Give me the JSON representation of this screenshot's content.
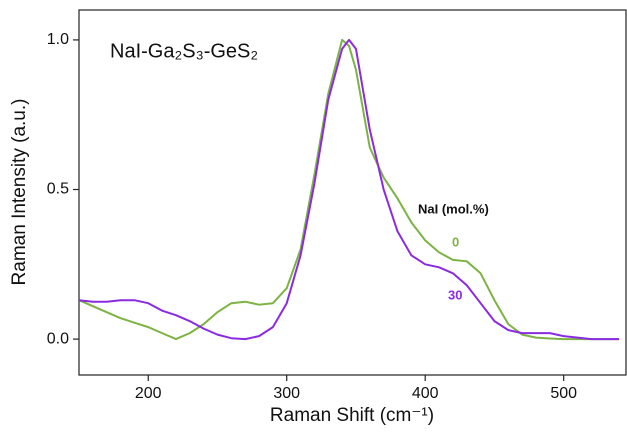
{
  "chart_data": {
    "type": "line",
    "annotation": "NaI-Ga₂S₃-GeS₂",
    "x_label": "Raman Shift (cm⁻¹)",
    "y_label": "Raman Intensity (a.u.)",
    "legend_title": "NaI (mol.%)",
    "x": [
      150,
      160,
      170,
      180,
      190,
      200,
      210,
      220,
      230,
      240,
      250,
      260,
      270,
      280,
      290,
      300,
      310,
      320,
      330,
      340,
      345,
      350,
      360,
      370,
      380,
      390,
      400,
      410,
      420,
      430,
      440,
      450,
      460,
      470,
      480,
      490,
      500,
      510,
      520,
      530,
      540
    ],
    "series": [
      {
        "name": "0",
        "color": "#7cb342",
        "values": [
          0.13,
          0.11,
          0.09,
          0.07,
          0.055,
          0.04,
          0.02,
          0.0,
          0.02,
          0.05,
          0.09,
          0.12,
          0.125,
          0.115,
          0.12,
          0.17,
          0.3,
          0.55,
          0.82,
          1.0,
          0.98,
          0.9,
          0.64,
          0.54,
          0.47,
          0.39,
          0.33,
          0.29,
          0.265,
          0.26,
          0.22,
          0.13,
          0.05,
          0.015,
          0.005,
          0.002,
          0.0,
          0.0,
          0.0,
          0.0,
          0.0
        ]
      },
      {
        "name": "30",
        "color": "#8a2be2",
        "values": [
          0.13,
          0.125,
          0.125,
          0.13,
          0.13,
          0.12,
          0.095,
          0.08,
          0.06,
          0.035,
          0.015,
          0.003,
          0.0,
          0.01,
          0.04,
          0.12,
          0.28,
          0.52,
          0.8,
          0.97,
          1.0,
          0.97,
          0.7,
          0.5,
          0.36,
          0.28,
          0.25,
          0.24,
          0.22,
          0.18,
          0.12,
          0.06,
          0.03,
          0.02,
          0.02,
          0.02,
          0.01,
          0.005,
          0.0,
          0.0,
          0.0
        ]
      }
    ],
    "xlim": [
      150,
      545
    ],
    "ylim": [
      -0.12,
      1.1
    ],
    "xticks": [
      200,
      300,
      400,
      500
    ],
    "yticks": [
      {
        "value": 0,
        "label": "0.0"
      },
      0.5,
      {
        "value": 1,
        "label": "1.0"
      }
    ],
    "grid": false
  }
}
